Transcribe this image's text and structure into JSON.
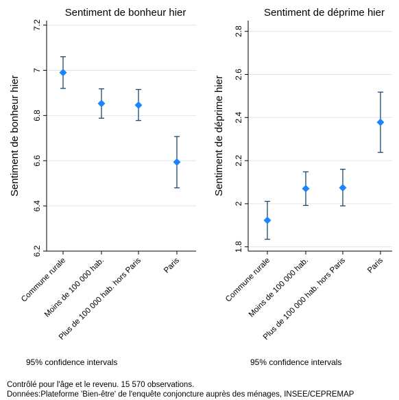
{
  "chart_data": [
    {
      "type": "scatter",
      "subtype": "point-with-95-ci",
      "title": "Sentiment de bonheur hier",
      "ylabel": "Sentiment de bonheur hier",
      "xlabel": "",
      "categories": [
        "Commune rurale",
        "Moins de 100 000 hab.",
        "Plus de 100 000 hab. hors Paris",
        "Paris"
      ],
      "values": [
        6.99,
        6.853,
        6.846,
        6.594
      ],
      "ci_low": [
        6.92,
        6.788,
        6.778,
        6.48
      ],
      "ci_high": [
        7.06,
        6.918,
        6.915,
        6.707
      ],
      "ylim": [
        6.2,
        7.22
      ],
      "yticks": [
        6.2,
        6.4,
        6.6,
        6.8,
        7,
        7.2
      ],
      "ytick_labels": [
        "6.2",
        "6.4",
        "6.6",
        "6.8",
        "7",
        "7.2"
      ],
      "grid": true,
      "note": "95% confidence intervals",
      "colors": {
        "marker": "#1a85ff",
        "whisker": "#1a476f",
        "grid": "#e1e6ea"
      }
    },
    {
      "type": "scatter",
      "subtype": "point-with-95-ci",
      "title": "Sentiment de déprime hier",
      "ylabel": "Sentiment de déprime hier",
      "xlabel": "",
      "categories": [
        "Commune rurale",
        "Moins de 100 000 hab.",
        "Plus de 100 000 hab. hors Paris",
        "Paris"
      ],
      "values": [
        1.923,
        2.07,
        2.074,
        2.378
      ],
      "ci_low": [
        1.835,
        1.992,
        1.99,
        2.238
      ],
      "ci_high": [
        2.011,
        2.148,
        2.16,
        2.518
      ],
      "ylim": [
        1.78,
        2.85
      ],
      "yticks": [
        1.8,
        2,
        2.2,
        2.4,
        2.6,
        2.8
      ],
      "ytick_labels": [
        "1.8",
        "2",
        "2.2",
        "2.4",
        "2.6",
        "2.8"
      ],
      "grid": true,
      "note": "95% confidence intervals",
      "colors": {
        "marker": "#1a85ff",
        "whisker": "#1a476f",
        "grid": "#e1e6ea"
      }
    }
  ],
  "footnotes": [
    "Contrôlé pour l'âge et le revenu. 15 570 observations.",
    "Données:Plateforme 'Bien-être' de l'enquête conjoncture auprès des ménages, INSEE/CEPREMAP"
  ]
}
